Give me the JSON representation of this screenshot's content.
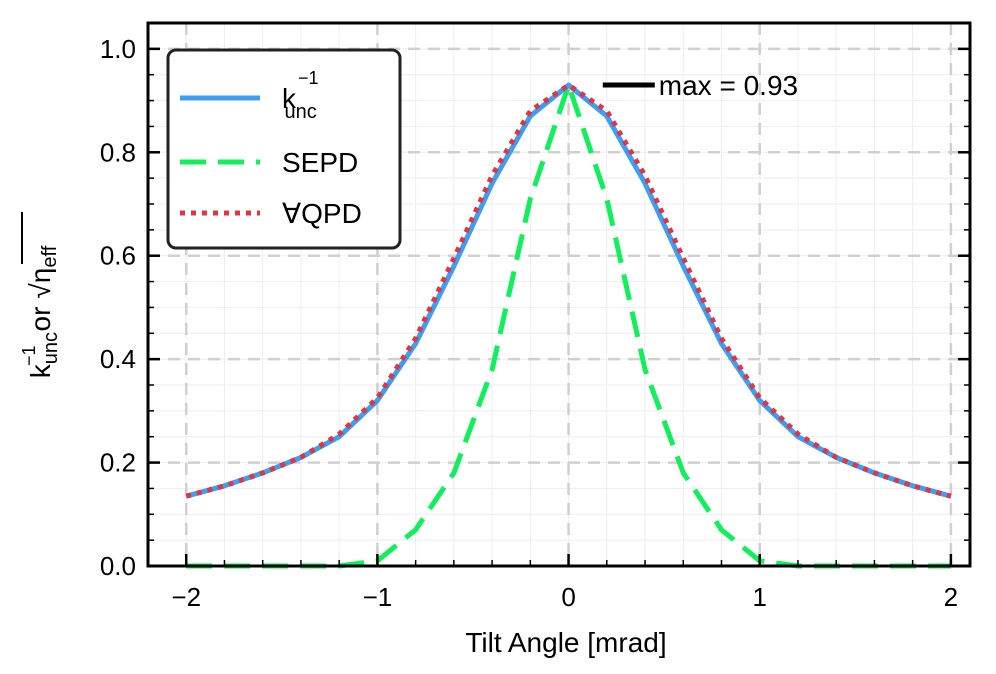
{
  "chart_data": {
    "type": "line",
    "xlabel": "Tilt Angle [mrad]",
    "ylabel_parts": {
      "k": "k",
      "sup": "−1",
      "sub": "unc",
      "or": "or",
      "eta": "η",
      "eta_sub": "eff"
    },
    "xlim": [
      -2.2,
      2.1
    ],
    "ylim": [
      0.0,
      1.05
    ],
    "xticks": [
      -2,
      -1,
      0,
      1,
      2
    ],
    "xtick_labels": [
      "−2",
      "−1",
      "0",
      "1",
      "2"
    ],
    "yticks": [
      0.0,
      0.2,
      0.4,
      0.6,
      0.8,
      1.0
    ],
    "ytick_labels": [
      "0.0",
      "0.2",
      "0.4",
      "0.6",
      "0.8",
      "1.0"
    ],
    "grid": true,
    "legend_position": "top-left",
    "annotation": {
      "text": "max = 0.93",
      "x": 0.2,
      "y": 0.93
    },
    "series": [
      {
        "name": "k_unc^-1",
        "label_main": "k",
        "label_sup": "−1",
        "label_sub": "unc",
        "color": "#3aa0f5",
        "style": "solid",
        "x": [
          -2.0,
          -1.8,
          -1.6,
          -1.4,
          -1.2,
          -1.0,
          -0.8,
          -0.6,
          -0.4,
          -0.2,
          0.0,
          0.2,
          0.4,
          0.6,
          0.8,
          1.0,
          1.2,
          1.4,
          1.6,
          1.8,
          2.0
        ],
        "y": [
          0.135,
          0.155,
          0.18,
          0.21,
          0.25,
          0.32,
          0.43,
          0.58,
          0.74,
          0.87,
          0.93,
          0.87,
          0.74,
          0.58,
          0.43,
          0.32,
          0.25,
          0.21,
          0.18,
          0.155,
          0.135
        ]
      },
      {
        "name": "SEPD",
        "label_main": "SEPD",
        "color": "#10f05a",
        "style": "dashed",
        "x": [
          -2.0,
          -1.6,
          -1.2,
          -1.0,
          -0.8,
          -0.6,
          -0.4,
          -0.2,
          0.0,
          0.2,
          0.4,
          0.6,
          0.8,
          1.0,
          1.2,
          1.6,
          2.0
        ],
        "y": [
          0.0,
          0.0,
          0.0,
          0.01,
          0.07,
          0.18,
          0.38,
          0.71,
          0.93,
          0.71,
          0.38,
          0.18,
          0.07,
          0.01,
          0.0,
          0.0,
          0.0
        ]
      },
      {
        "name": "∀QPD",
        "label_main": "∀QPD",
        "color": "#e03545",
        "style": "dotted",
        "x": [
          -2.0,
          -1.8,
          -1.6,
          -1.4,
          -1.2,
          -1.0,
          -0.8,
          -0.6,
          -0.4,
          -0.2,
          0.0,
          0.2,
          0.4,
          0.6,
          0.8,
          1.0,
          1.2,
          1.4,
          1.6,
          1.8,
          2.0
        ],
        "y": [
          0.135,
          0.155,
          0.18,
          0.21,
          0.255,
          0.325,
          0.44,
          0.595,
          0.755,
          0.88,
          0.93,
          0.88,
          0.755,
          0.595,
          0.44,
          0.325,
          0.255,
          0.21,
          0.18,
          0.155,
          0.135
        ]
      }
    ]
  }
}
